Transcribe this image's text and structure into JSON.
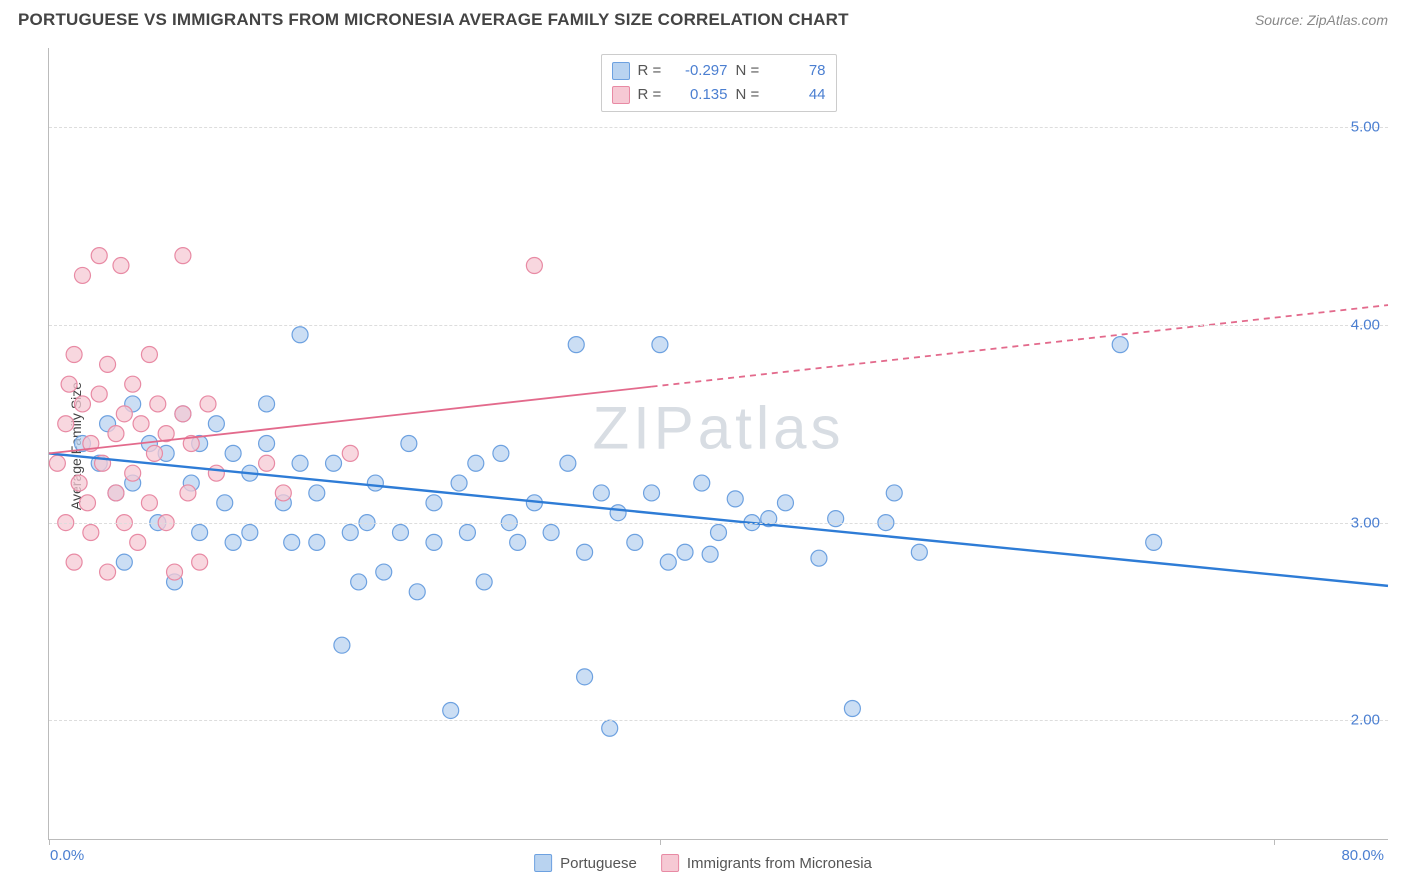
{
  "header": {
    "title": "PORTUGUESE VS IMMIGRANTS FROM MICRONESIA AVERAGE FAMILY SIZE CORRELATION CHART",
    "source": "Source: ZipAtlas.com"
  },
  "chart": {
    "type": "scatter",
    "ylabel": "Average Family Size",
    "watermark": "ZIPatlas",
    "background_color": "#ffffff",
    "grid_color": "#dddddd",
    "axis_color": "#bbbbbb",
    "tick_color": "#4b7fd1",
    "xlim": [
      0,
      80
    ],
    "ylim": [
      1.4,
      5.4
    ],
    "yticks": [
      2.0,
      3.0,
      4.0,
      5.0
    ],
    "ytick_labels": [
      "2.00",
      "3.00",
      "4.00",
      "5.00"
    ],
    "x_start_label": "0.0%",
    "x_end_label": "80.0%",
    "x_tick_positions": [
      0,
      36.5,
      73.2
    ],
    "marker_radius": 8,
    "marker_stroke_width": 1.2,
    "series": [
      {
        "name": "Portuguese",
        "color_fill": "#b9d3f0",
        "color_stroke": "#6da1e0",
        "trend_color": "#2e7cd6",
        "trend_width": 2.4,
        "trend": {
          "x1": 0,
          "y1": 3.35,
          "x2": 80,
          "y2": 2.68
        },
        "trend_dash_from_x": null,
        "points": [
          [
            2,
            3.4
          ],
          [
            3,
            3.3
          ],
          [
            3.5,
            3.5
          ],
          [
            4,
            3.15
          ],
          [
            4.5,
            2.8
          ],
          [
            5,
            3.2
          ],
          [
            5,
            3.6
          ],
          [
            6,
            3.4
          ],
          [
            6.5,
            3.0
          ],
          [
            7,
            3.35
          ],
          [
            7.5,
            2.7
          ],
          [
            8,
            3.55
          ],
          [
            8.5,
            3.2
          ],
          [
            9,
            3.4
          ],
          [
            9,
            2.95
          ],
          [
            10,
            3.5
          ],
          [
            10.5,
            3.1
          ],
          [
            11,
            3.35
          ],
          [
            11,
            2.9
          ],
          [
            12,
            3.25
          ],
          [
            12,
            2.95
          ],
          [
            13,
            3.4
          ],
          [
            13,
            3.6
          ],
          [
            14,
            3.1
          ],
          [
            14.5,
            2.9
          ],
          [
            15,
            3.3
          ],
          [
            15,
            3.95
          ],
          [
            16,
            2.9
          ],
          [
            16,
            3.15
          ],
          [
            17,
            3.3
          ],
          [
            17.5,
            2.38
          ],
          [
            18,
            2.95
          ],
          [
            18.5,
            2.7
          ],
          [
            19,
            3.0
          ],
          [
            19.5,
            3.2
          ],
          [
            20,
            2.75
          ],
          [
            21,
            2.95
          ],
          [
            21.5,
            3.4
          ],
          [
            22,
            2.65
          ],
          [
            23,
            3.1
          ],
          [
            23,
            2.9
          ],
          [
            24,
            2.05
          ],
          [
            24.5,
            3.2
          ],
          [
            25,
            2.95
          ],
          [
            25.5,
            3.3
          ],
          [
            26,
            2.7
          ],
          [
            27,
            3.35
          ],
          [
            27.5,
            3.0
          ],
          [
            28,
            2.9
          ],
          [
            29,
            3.1
          ],
          [
            30,
            2.95
          ],
          [
            31,
            3.3
          ],
          [
            31.5,
            3.9
          ],
          [
            32,
            2.22
          ],
          [
            32,
            2.85
          ],
          [
            33,
            3.15
          ],
          [
            33.5,
            1.96
          ],
          [
            34,
            3.05
          ],
          [
            35,
            2.9
          ],
          [
            36,
            3.15
          ],
          [
            36.5,
            3.9
          ],
          [
            37,
            2.8
          ],
          [
            38,
            2.85
          ],
          [
            39,
            3.2
          ],
          [
            39.5,
            2.84
          ],
          [
            40,
            2.95
          ],
          [
            41,
            3.12
          ],
          [
            42,
            3.0
          ],
          [
            43,
            3.02
          ],
          [
            44,
            3.1
          ],
          [
            46,
            2.82
          ],
          [
            47,
            3.02
          ],
          [
            48,
            2.06
          ],
          [
            50,
            3.0
          ],
          [
            50.5,
            3.15
          ],
          [
            52,
            2.85
          ],
          [
            64,
            3.9
          ],
          [
            66,
            2.9
          ]
        ]
      },
      {
        "name": "Immigrants from Micronesia",
        "color_fill": "#f6c9d4",
        "color_stroke": "#e88aa4",
        "trend_color": "#e36a8c",
        "trend_width": 1.8,
        "trend": {
          "x1": 0,
          "y1": 3.35,
          "x2": 80,
          "y2": 4.1
        },
        "trend_dash_from_x": 36,
        "points": [
          [
            0.5,
            3.3
          ],
          [
            1,
            3.5
          ],
          [
            1,
            3.0
          ],
          [
            1.2,
            3.7
          ],
          [
            1.5,
            2.8
          ],
          [
            1.5,
            3.85
          ],
          [
            1.8,
            3.2
          ],
          [
            2,
            3.6
          ],
          [
            2,
            4.25
          ],
          [
            2.3,
            3.1
          ],
          [
            2.5,
            3.4
          ],
          [
            2.5,
            2.95
          ],
          [
            3,
            3.65
          ],
          [
            3,
            4.35
          ],
          [
            3.2,
            3.3
          ],
          [
            3.5,
            3.8
          ],
          [
            3.5,
            2.75
          ],
          [
            4,
            3.45
          ],
          [
            4,
            3.15
          ],
          [
            4.3,
            4.3
          ],
          [
            4.5,
            3.55
          ],
          [
            4.5,
            3.0
          ],
          [
            5,
            3.7
          ],
          [
            5,
            3.25
          ],
          [
            5.3,
            2.9
          ],
          [
            5.5,
            3.5
          ],
          [
            6,
            3.85
          ],
          [
            6,
            3.1
          ],
          [
            6.3,
            3.35
          ],
          [
            6.5,
            3.6
          ],
          [
            7,
            3.0
          ],
          [
            7,
            3.45
          ],
          [
            7.5,
            2.75
          ],
          [
            8,
            4.35
          ],
          [
            8,
            3.55
          ],
          [
            8.3,
            3.15
          ],
          [
            8.5,
            3.4
          ],
          [
            9,
            2.8
          ],
          [
            9.5,
            3.6
          ],
          [
            10,
            3.25
          ],
          [
            13,
            3.3
          ],
          [
            14,
            3.15
          ],
          [
            18,
            3.35
          ],
          [
            29,
            4.3
          ]
        ]
      }
    ],
    "legend_top": {
      "rows": [
        {
          "swatch_fill": "#b9d3f0",
          "swatch_stroke": "#6da1e0",
          "r_label": "R =",
          "r_val": "-0.297",
          "n_label": "N =",
          "n_val": "78"
        },
        {
          "swatch_fill": "#f6c9d4",
          "swatch_stroke": "#e88aa4",
          "r_label": "R =",
          "r_val": "0.135",
          "n_label": "N =",
          "n_val": "44"
        }
      ]
    },
    "legend_bottom": [
      {
        "swatch_fill": "#b9d3f0",
        "swatch_stroke": "#6da1e0",
        "label": "Portuguese"
      },
      {
        "swatch_fill": "#f6c9d4",
        "swatch_stroke": "#e88aa4",
        "label": "Immigrants from Micronesia"
      }
    ]
  }
}
